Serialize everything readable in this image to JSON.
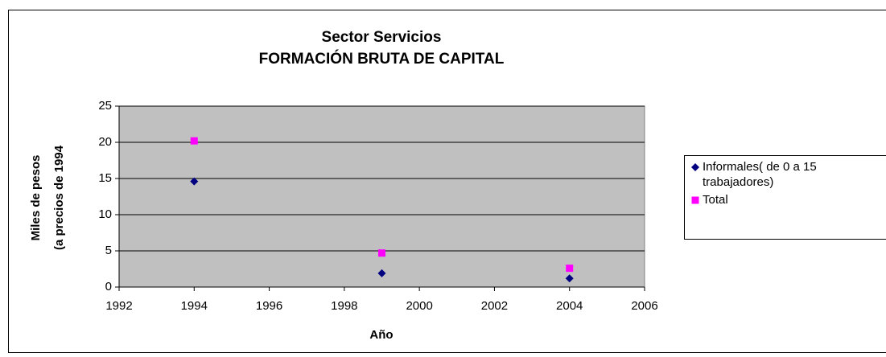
{
  "chart_data": {
    "type": "scatter",
    "title": [
      "Sector Servicios",
      "FORMACIÓN BRUTA DE CAPITAL"
    ],
    "x_label": "Año",
    "y_label": [
      "Miles de pesos",
      "(a precios de 1994"
    ],
    "xlim": [
      1992,
      2006
    ],
    "xticks": [
      1992,
      1994,
      1996,
      1998,
      2000,
      2002,
      2004,
      2006
    ],
    "ylim": [
      0,
      25
    ],
    "yticks": [
      0,
      5,
      10,
      15,
      20,
      25
    ],
    "grid": true,
    "legend": "right",
    "series": [
      {
        "name": "Informales( de 0 a 15 trabajadores)",
        "color": "#000080",
        "marker": "diamond",
        "x": [
          1994,
          1999,
          2004
        ],
        "values": [
          14.6,
          1.9,
          1.2
        ]
      },
      {
        "name": "Total",
        "color": "#ff00ff",
        "marker": "square",
        "x": [
          1994,
          1999,
          2004
        ],
        "values": [
          20.2,
          4.7,
          2.6
        ]
      }
    ]
  }
}
